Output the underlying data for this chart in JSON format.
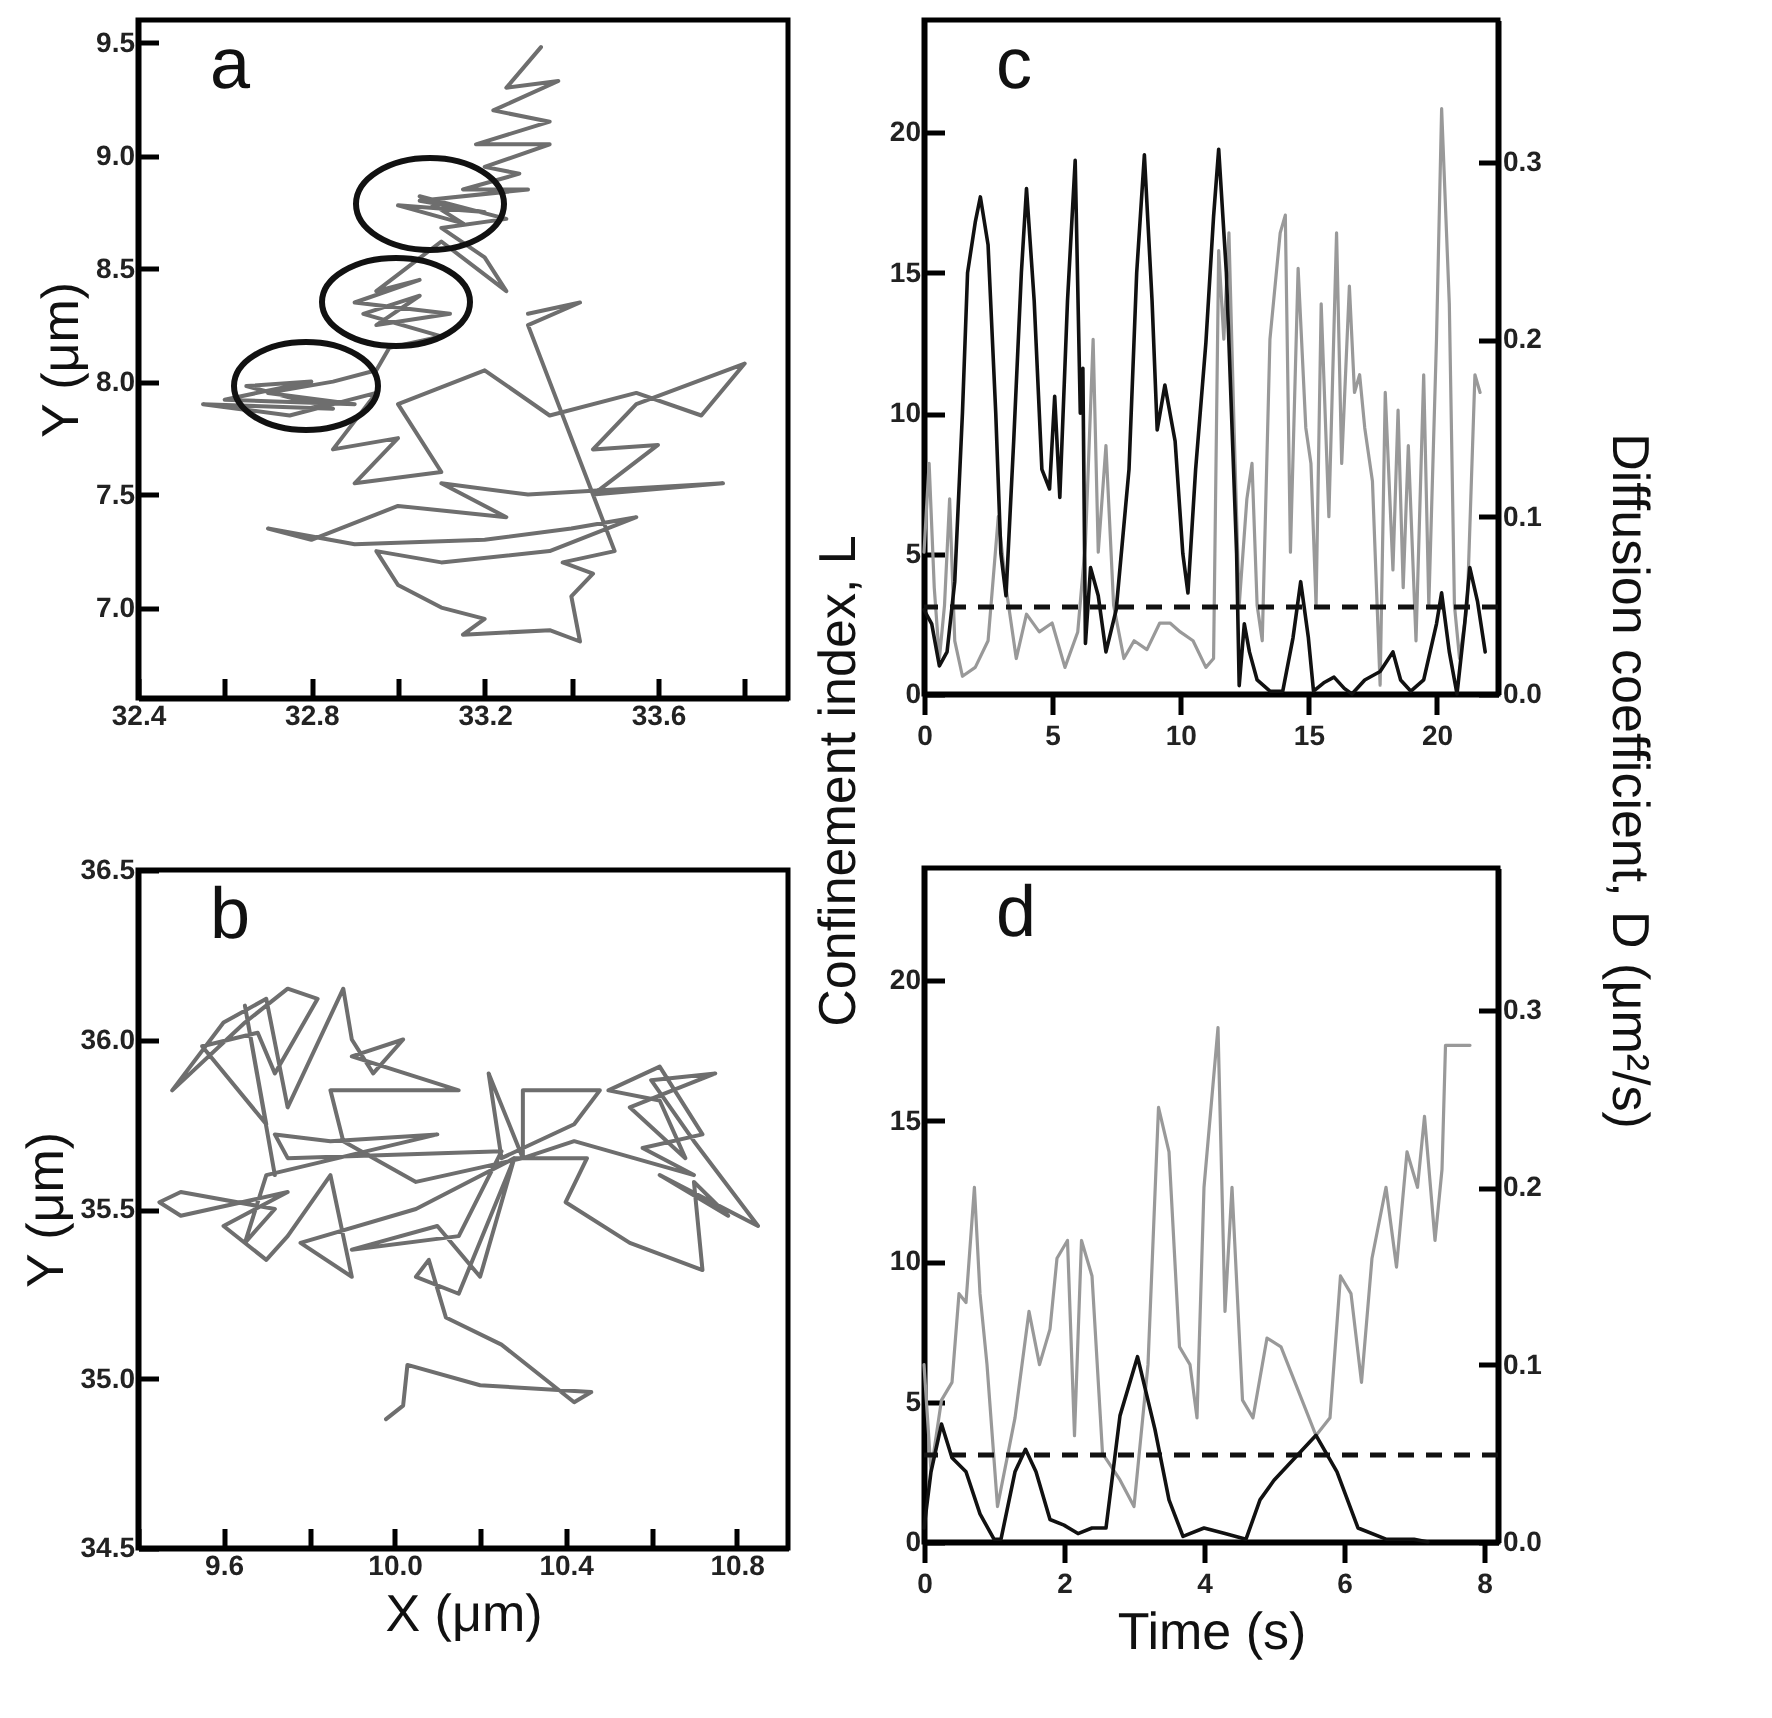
{
  "chart_data": [
    {
      "type": "line",
      "ylabel": "Y (μm)",
      "annotations": [
        "a"
      ],
      "xlim": [
        32.4,
        33.9
      ],
      "ylim": [
        6.6,
        9.6
      ],
      "xticks": [
        32.4,
        {
          "value": 32.6,
          "label": null
        },
        32.8,
        {
          "value": 33.0,
          "label": null
        },
        33.2,
        {
          "value": 33.4,
          "label": null
        },
        33.6,
        {
          "value": 33.8,
          "label": null
        }
      ],
      "yticks": [
        {
          "value": 7,
          "label": "7.0"
        },
        7.5,
        {
          "value": 8,
          "label": "8.0"
        },
        8.5,
        {
          "value": 9,
          "label": "9.0"
        },
        9.5
      ],
      "series": [
        {
          "color": "#6e6e6e",
          "x": [
            33.33,
            33.25,
            33.37,
            33.22,
            33.35,
            33.18,
            33.35,
            33.2,
            33.28,
            33.15,
            33.3,
            33.05,
            33.2,
            33.0,
            33.15,
            33.05,
            33.25,
            33.1,
            33.2,
            33.25,
            33.1,
            32.95,
            33.05,
            32.9,
            33.12,
            32.95,
            33.05,
            32.92,
            33.1,
            32.98,
            32.95,
            32.85,
            32.7,
            32.9,
            32.6,
            32.8,
            32.65,
            32.85,
            32.55,
            32.75,
            32.95,
            32.85,
            33.0,
            32.9,
            33.1,
            33.0,
            33.2,
            33.35,
            33.55,
            33.7,
            33.8,
            33.55,
            33.45,
            33.6,
            33.45,
            33.75,
            33.3,
            33.1,
            33.25,
            33.0,
            32.8,
            32.7,
            32.9,
            33.2,
            33.4,
            33.55,
            33.35,
            33.1,
            32.95,
            33.0,
            33.1,
            33.2,
            33.15,
            33.35,
            33.42,
            33.4,
            33.45,
            33.38,
            33.5,
            33.3,
            33.42,
            33.3
          ],
          "values": [
            9.48,
            9.3,
            9.33,
            9.2,
            9.15,
            9.05,
            9.05,
            8.95,
            8.92,
            8.85,
            8.85,
            8.8,
            8.75,
            8.78,
            8.7,
            8.82,
            8.72,
            8.68,
            8.55,
            8.4,
            8.62,
            8.4,
            8.45,
            8.35,
            8.3,
            8.25,
            8.38,
            8.3,
            8.2,
            8.15,
            8.05,
            8.0,
            7.95,
            7.9,
            7.92,
            8.0,
            7.98,
            7.88,
            7.9,
            7.85,
            7.95,
            7.7,
            7.75,
            7.55,
            7.6,
            7.9,
            8.05,
            7.85,
            7.95,
            7.85,
            8.08,
            7.9,
            7.7,
            7.72,
            7.5,
            7.55,
            7.5,
            7.55,
            7.4,
            7.45,
            7.3,
            7.35,
            7.28,
            7.3,
            7.35,
            7.4,
            7.25,
            7.2,
            7.25,
            7.1,
            7.0,
            6.95,
            6.88,
            6.9,
            6.85,
            7.05,
            7.15,
            7.2,
            7.25,
            8.25,
            8.35,
            8.3
          ]
        }
      ]
    },
    {
      "type": "line",
      "xlabel": "X (μm)",
      "ylabel": "Y (μm)",
      "annotations": [
        "b"
      ],
      "xlim": [
        9.4,
        10.92
      ],
      "ylim": [
        34.5,
        36.5
      ],
      "xticks": [
        {
          "value": 9.4,
          "label": null
        },
        9.6,
        {
          "value": 9.8,
          "label": null
        },
        {
          "value": 10,
          "label": "10.0"
        },
        {
          "value": 10.2,
          "label": null
        },
        10.4,
        {
          "value": 10.6,
          "label": null
        },
        10.8
      ],
      "yticks": [
        34.5,
        {
          "value": 35,
          "label": "35.0"
        },
        35.5,
        {
          "value": 36,
          "label": "36.0"
        },
        36.5
      ],
      "series": [
        {
          "color": "#6e6e6e",
          "x": [
            9.98,
            10.02,
            10.03,
            10.2,
            10.46,
            10.42,
            10.25,
            10.12,
            10.08,
            10.05,
            10.15,
            10.28,
            10.2,
            10.1,
            9.9,
            10.15,
            10.25,
            9.75,
            9.72,
            9.85,
            10.1,
            9.7,
            9.65,
            9.72,
            9.5,
            9.45,
            9.5,
            9.75,
            9.6,
            9.7,
            9.75,
            9.85,
            9.9,
            9.78,
            10.05,
            10.28,
            10.45,
            10.4,
            10.55,
            10.72,
            10.7,
            10.78,
            10.62,
            10.85,
            10.7,
            10.6,
            10.75,
            10.55,
            10.68,
            10.62,
            10.5,
            10.62,
            10.72,
            10.58,
            10.7,
            10.42,
            10.3,
            10.3,
            10.48,
            10.42,
            10.25,
            10.22,
            10.3,
            10.05,
            9.88,
            9.85,
            10.15,
            9.9,
            10.02,
            9.95,
            9.9,
            9.88,
            9.75,
            9.7,
            9.6,
            9.48,
            9.65,
            9.75,
            9.82,
            9.72,
            9.68,
            9.55,
            9.7,
            9.65,
            9.72
          ],
          "values": [
            34.88,
            34.92,
            35.04,
            34.98,
            34.96,
            34.93,
            35.1,
            35.18,
            35.35,
            35.3,
            35.25,
            35.65,
            35.3,
            35.45,
            35.38,
            35.42,
            35.67,
            35.65,
            35.72,
            35.7,
            35.72,
            35.6,
            35.4,
            35.5,
            35.55,
            35.52,
            35.48,
            35.55,
            35.45,
            35.35,
            35.42,
            35.6,
            35.3,
            35.4,
            35.5,
            35.65,
            35.65,
            35.52,
            35.4,
            35.32,
            35.58,
            35.48,
            35.6,
            35.45,
            35.7,
            35.88,
            35.9,
            35.8,
            35.65,
            35.82,
            35.85,
            35.92,
            35.72,
            35.68,
            35.6,
            35.7,
            35.65,
            35.85,
            35.85,
            35.75,
            35.65,
            35.9,
            35.65,
            35.58,
            35.7,
            35.85,
            35.85,
            35.95,
            36.0,
            35.9,
            36.0,
            36.15,
            35.8,
            36.12,
            36.05,
            35.85,
            36.05,
            36.15,
            36.12,
            35.9,
            36.02,
            35.98,
            35.75,
            36.1,
            35.6
          ]
        }
      ]
    },
    {
      "type": "line",
      "ylabel": "Confinement index, L",
      "y2label": "Diffusion coefficient, D (μm²/s)",
      "annotations": [
        "c"
      ],
      "xlim": [
        0,
        22.4
      ],
      "ylim": [
        0,
        24
      ],
      "y2lim": [
        0,
        0.38
      ],
      "xticks": [
        0,
        5,
        10,
        15,
        20
      ],
      "yticks": [
        0,
        5,
        10,
        15,
        20
      ],
      "y2ticks": [
        {
          "value": 0,
          "label": "0.0"
        },
        0.1,
        0.2,
        0.3
      ],
      "ref_lines": [
        {
          "axis": "y",
          "value": 3.1,
          "color": "#111111",
          "line_style": "dashed"
        }
      ],
      "series": [
        {
          "color": "#999999",
          "axis": "y2",
          "x": [
            0,
            0.2,
            0.4,
            0.6,
            0.8,
            1.0,
            1.2,
            1.5,
            2.0,
            2.5,
            2.9,
            3.2,
            3.6,
            4.0,
            4.5,
            5.0,
            5.5,
            6.0,
            6.3,
            6.6,
            6.8,
            7.1,
            7.4,
            7.8,
            8.2,
            8.7,
            9.2,
            9.6,
            10.0,
            10.5,
            11.0,
            11.3,
            11.5,
            11.7,
            11.9,
            12.1,
            12.3,
            12.6,
            12.8,
            13.0,
            13.2,
            13.5,
            13.9,
            14.1,
            14.3,
            14.6,
            14.9,
            15.1,
            15.3,
            15.5,
            15.8,
            16.1,
            16.3,
            16.6,
            16.8,
            17.0,
            17.2,
            17.5,
            17.8,
            18.0,
            18.3,
            18.5,
            18.7,
            18.9,
            19.2,
            19.5,
            19.7,
            20.0,
            20.2,
            20.5,
            20.7,
            20.9,
            21.2,
            21.5,
            21.7
          ],
          "values": [
            0.08,
            0.13,
            0.06,
            0.02,
            0.05,
            0.11,
            0.03,
            0.01,
            0.015,
            0.03,
            0.1,
            0.06,
            0.02,
            0.045,
            0.035,
            0.04,
            0.015,
            0.035,
            0.085,
            0.2,
            0.08,
            0.14,
            0.05,
            0.02,
            0.03,
            0.025,
            0.04,
            0.04,
            0.035,
            0.03,
            0.015,
            0.02,
            0.25,
            0.2,
            0.26,
            0.15,
            0.05,
            0.11,
            0.13,
            0.05,
            0.03,
            0.2,
            0.26,
            0.27,
            0.08,
            0.24,
            0.15,
            0.13,
            0.05,
            0.22,
            0.1,
            0.26,
            0.13,
            0.23,
            0.17,
            0.18,
            0.15,
            0.12,
            0.005,
            0.17,
            0.07,
            0.16,
            0.06,
            0.14,
            0.03,
            0.18,
            0.05,
            0.2,
            0.33,
            0.22,
            0.05,
            0.02,
            0.05,
            0.18,
            0.17
          ]
        },
        {
          "color": "#111111",
          "x": [
            0,
            0.3,
            0.6,
            0.9,
            1.2,
            1.5,
            1.7,
            2.0,
            2.2,
            2.5,
            2.8,
            3.0,
            3.2,
            3.5,
            3.8,
            4.0,
            4.3,
            4.6,
            4.9,
            5.1,
            5.3,
            5.6,
            5.9,
            6.1,
            6.2,
            6.3,
            6.5,
            6.8,
            7.1,
            7.5,
            8.0,
            8.3,
            8.6,
            8.9,
            9.1,
            9.4,
            9.8,
            10.1,
            10.3,
            10.6,
            11.0,
            11.3,
            11.5,
            11.8,
            12.2,
            12.3,
            12.5,
            12.7,
            13.0,
            13.5,
            14.0,
            14.4,
            14.7,
            15.0,
            15.2,
            15.6,
            16.0,
            16.4,
            16.7,
            17.2,
            17.8,
            18.3,
            18.6,
            19.0,
            19.5,
            20.0,
            20.2,
            20.5,
            20.8,
            21.1,
            21.3,
            21.6,
            21.9
          ],
          "values": [
            3,
            2.5,
            1,
            1.5,
            4,
            10,
            15,
            16.8,
            17.7,
            16,
            10,
            5,
            3.5,
            9,
            15,
            18,
            14,
            8,
            7.3,
            10.6,
            7,
            14,
            19,
            10,
            11.6,
            1.8,
            4.5,
            3.5,
            1.5,
            3,
            8,
            15,
            19.2,
            14,
            9.4,
            11,
            9,
            5,
            3.6,
            8,
            12.5,
            17,
            19.4,
            15,
            5,
            0.3,
            2.5,
            1.5,
            0.5,
            0.1,
            0.1,
            2,
            4,
            2,
            0.1,
            0.4,
            0.6,
            0.2,
            0,
            0.5,
            0.8,
            1.5,
            0.5,
            0.1,
            0.5,
            2.5,
            3.6,
            1.5,
            0,
            2.5,
            4.5,
            3.3,
            1.5
          ]
        }
      ]
    },
    {
      "type": "line",
      "xlabel": "Time (s)",
      "annotations": [
        "d"
      ],
      "xlim": [
        0,
        8.2
      ],
      "ylim": [
        0,
        24
      ],
      "y2lim": [
        0,
        0.38
      ],
      "xticks": [
        0,
        2,
        4,
        6,
        8
      ],
      "yticks": [
        0,
        5,
        10,
        15,
        20
      ],
      "y2ticks": [
        {
          "value": 0,
          "label": "0.0"
        },
        0.1,
        0.2,
        0.3
      ],
      "ref_lines": [
        {
          "axis": "y",
          "value": 3.1,
          "color": "#111111",
          "line_style": "dashed"
        }
      ],
      "series": [
        {
          "color": "#999999",
          "axis": "y2",
          "x": [
            0,
            0.1,
            0.25,
            0.4,
            0.5,
            0.6,
            0.72,
            0.8,
            0.9,
            1.05,
            1.2,
            1.3,
            1.5,
            1.65,
            1.8,
            1.9,
            2.05,
            2.15,
            2.25,
            2.4,
            2.55,
            2.8,
            3.0,
            3.2,
            3.35,
            3.5,
            3.65,
            3.8,
            3.9,
            4.0,
            4.2,
            4.3,
            4.4,
            4.55,
            4.7,
            4.9,
            5.1,
            5.3,
            5.5,
            5.6,
            5.8,
            5.95,
            6.1,
            6.25,
            6.4,
            6.6,
            6.75,
            6.9,
            7.05,
            7.15,
            7.3,
            7.4,
            7.45,
            7.8
          ],
          "values": [
            0.1,
            0.04,
            0.08,
            0.09,
            0.14,
            0.135,
            0.2,
            0.14,
            0.1,
            0.02,
            0.05,
            0.07,
            0.13,
            0.1,
            0.12,
            0.16,
            0.17,
            0.06,
            0.17,
            0.15,
            0.05,
            0.035,
            0.02,
            0.1,
            0.245,
            0.22,
            0.11,
            0.1,
            0.07,
            0.2,
            0.29,
            0.13,
            0.2,
            0.08,
            0.07,
            0.115,
            0.11,
            0.09,
            0.07,
            0.06,
            0.07,
            0.15,
            0.14,
            0.09,
            0.16,
            0.2,
            0.155,
            0.22,
            0.2,
            0.24,
            0.17,
            0.21,
            0.28,
            0.28
          ]
        },
        {
          "color": "#111111",
          "x": [
            0,
            0.1,
            0.25,
            0.4,
            0.6,
            0.8,
            1.0,
            1.1,
            1.3,
            1.45,
            1.6,
            1.8,
            2.0,
            2.2,
            2.4,
            2.6,
            2.8,
            3.05,
            3.3,
            3.5,
            3.7,
            4.0,
            4.3,
            4.6,
            4.8,
            5.0,
            5.3,
            5.6,
            5.9,
            6.2,
            6.6,
            7.0,
            7.2
          ],
          "values": [
            0.5,
            2.5,
            4.2,
            3,
            2.5,
            1,
            0.1,
            0.1,
            2.5,
            3.3,
            2.5,
            0.8,
            0.6,
            0.3,
            0.5,
            0.5,
            4.5,
            6.6,
            4,
            1.5,
            0.2,
            0.5,
            0.3,
            0.1,
            1.5,
            2.2,
            3,
            3.8,
            2.5,
            0.5,
            0.1,
            0.1,
            0
          ]
        }
      ]
    }
  ]
}
